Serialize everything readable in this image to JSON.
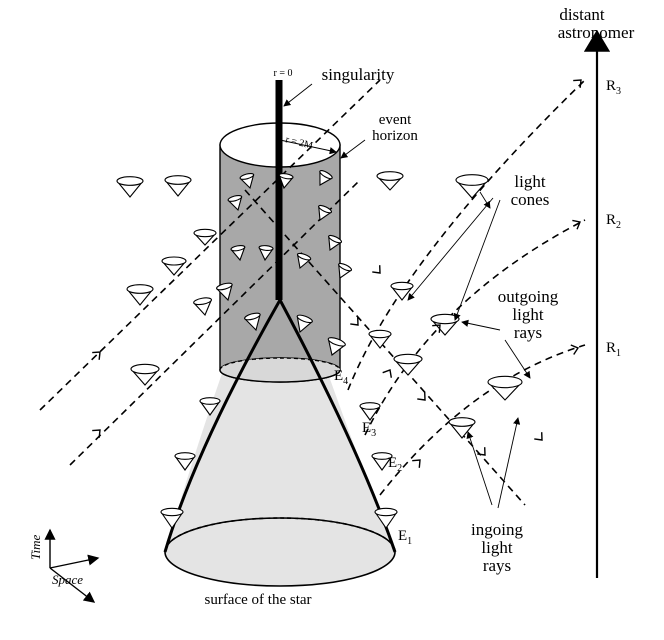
{
  "labels": {
    "distant": "distant",
    "astronomer": "astronomer",
    "r_eq_0": "r = 0",
    "singularity": "singularity",
    "r_eq_2m": "r = 2M",
    "event": "event",
    "horizon": "horizon",
    "light1": "light",
    "cones": "cones",
    "outgoing": "outgoing",
    "light2": "light",
    "rays1": "rays",
    "ingoing": "ingoing",
    "light3": "light",
    "rays2": "rays",
    "surface": "surface of the star",
    "time": "Time",
    "space": "Space"
  },
  "events": {
    "e1_base": "E",
    "e1_sub": "1",
    "e2_base": "E",
    "e2_sub": "2",
    "e3_base": "E",
    "e3_sub": "3",
    "e4_base": "E",
    "e4_sub": "4"
  },
  "observer_points": {
    "r1_base": "R",
    "r1_sub": "1",
    "r2_base": "R",
    "r2_sub": "2",
    "r3_base": "R",
    "r3_sub": "3"
  },
  "colors": {
    "horizon_fill": "#a8a8a8",
    "star_fill": "#e4e4e4",
    "ink": "#000000"
  }
}
